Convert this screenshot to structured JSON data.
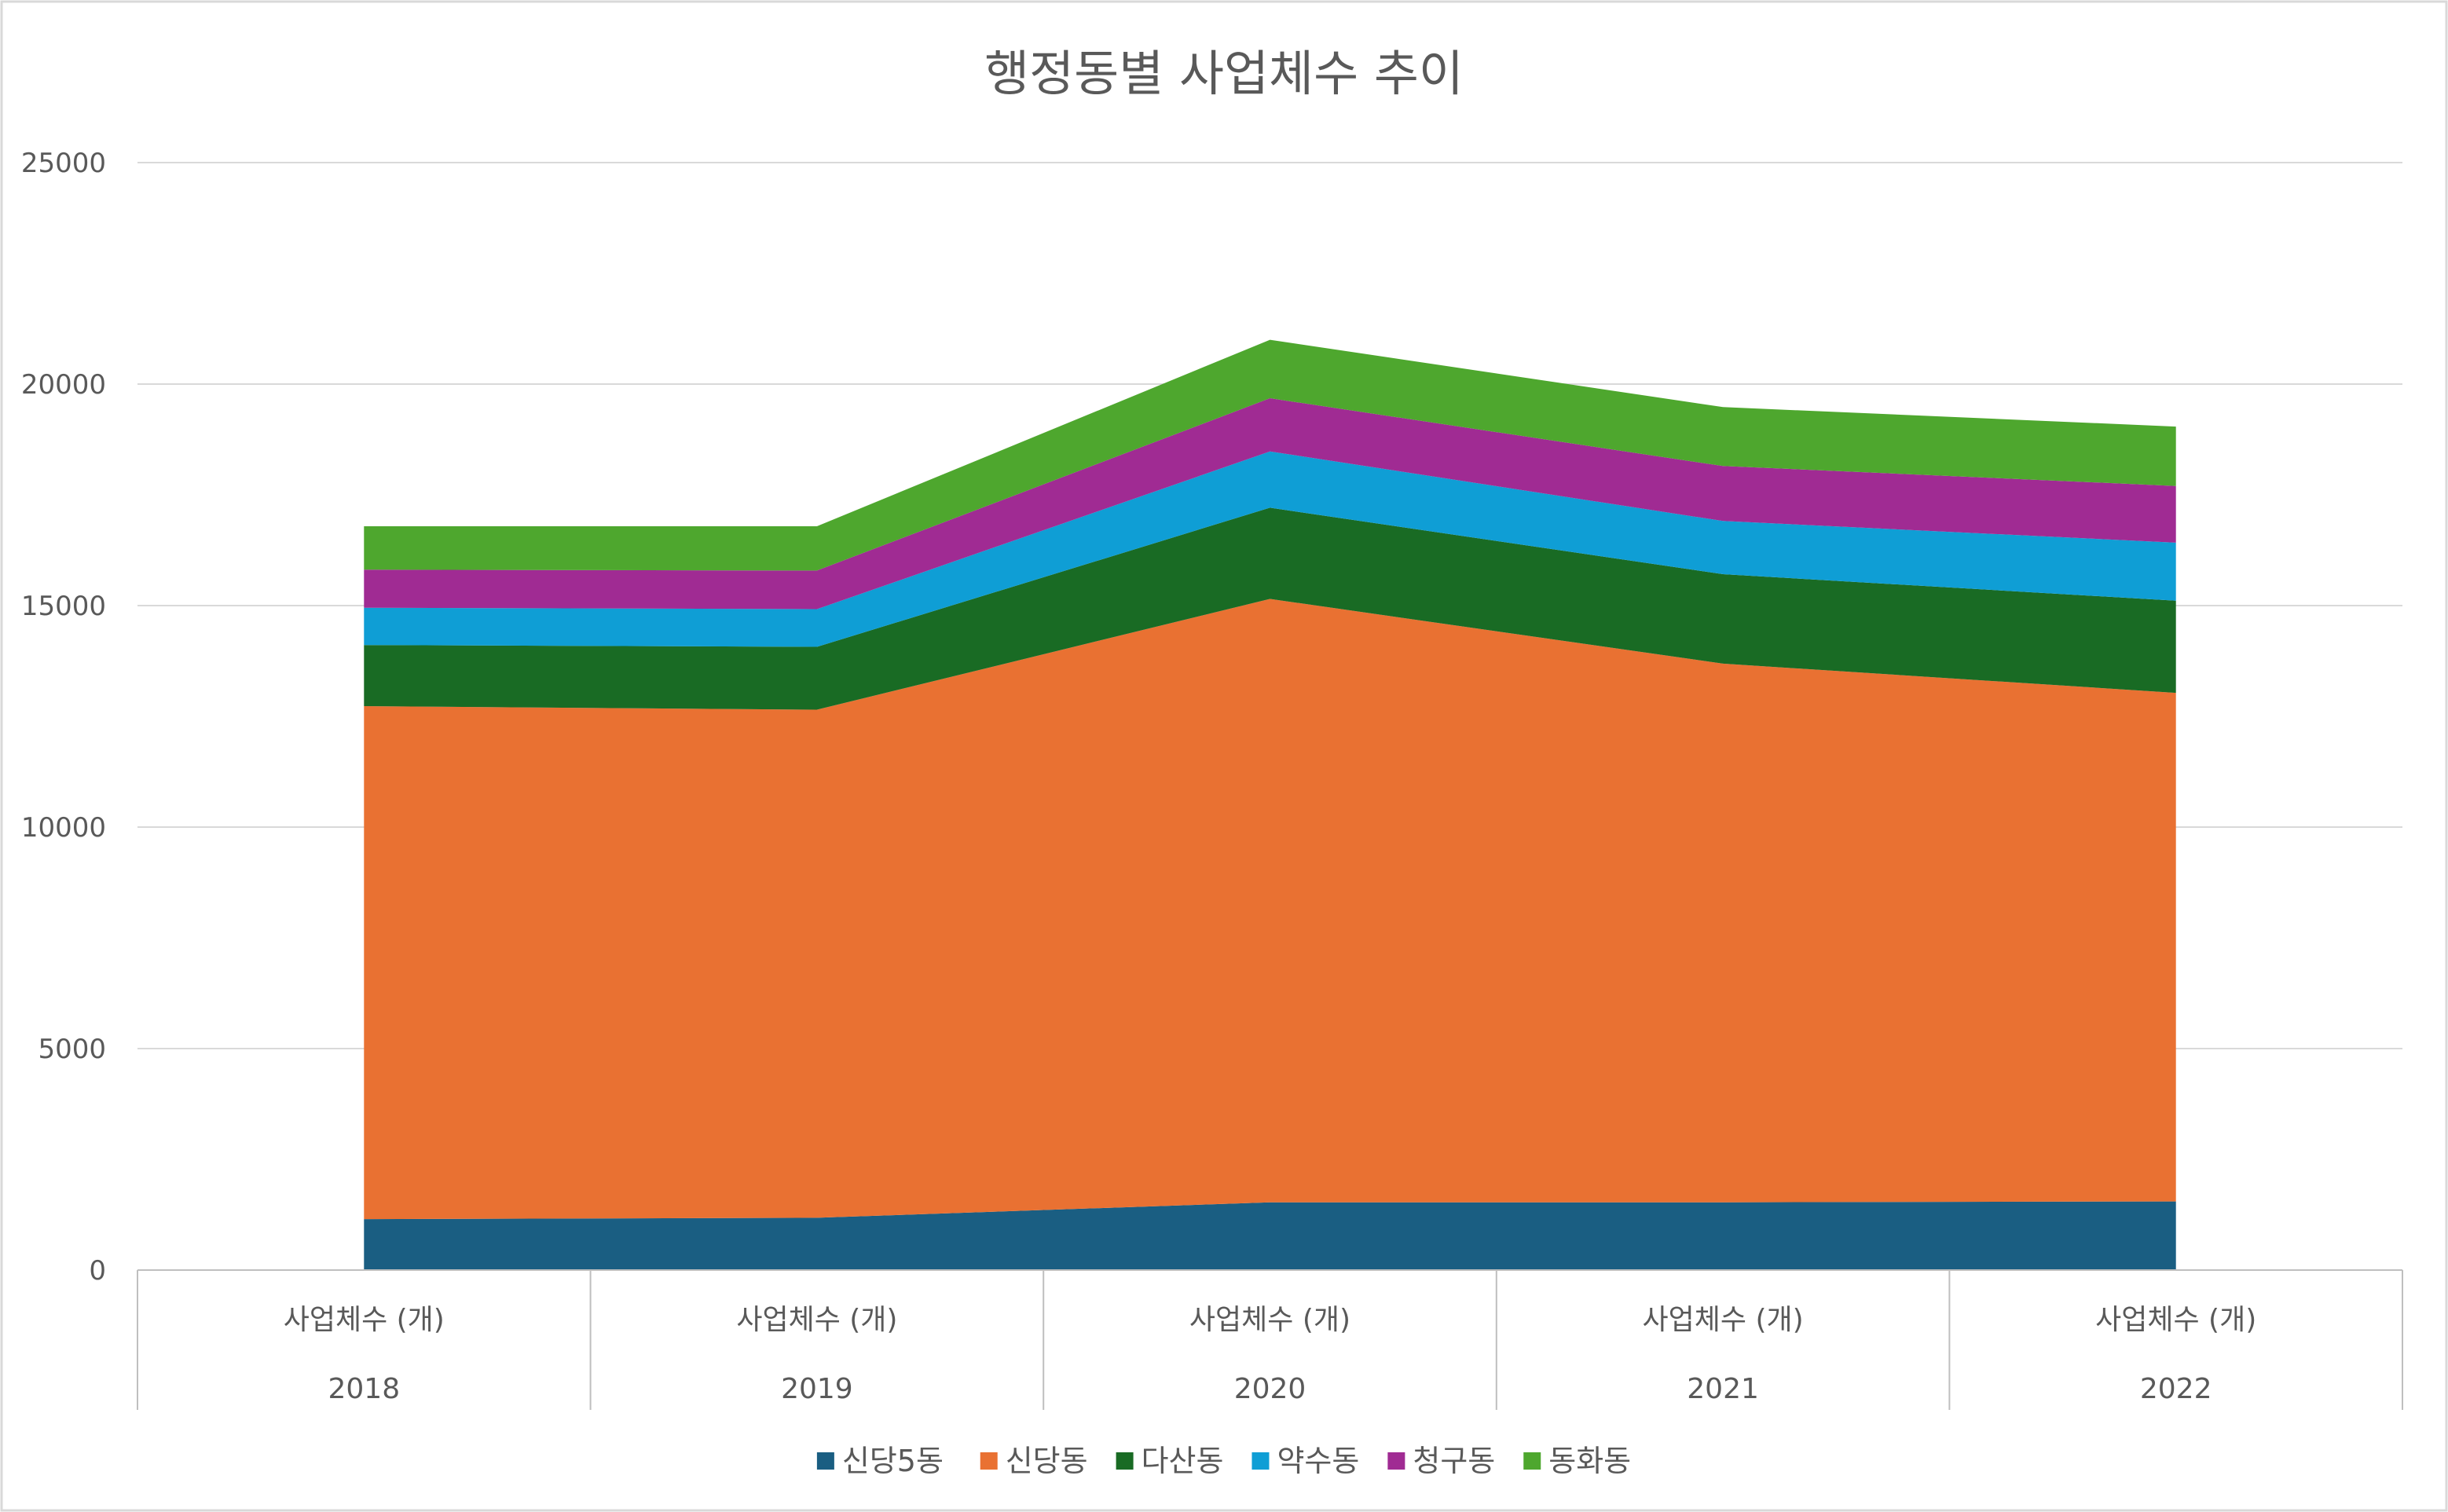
{
  "chart_data": {
    "type": "area",
    "stacked": true,
    "title": "행정동별 사업체수 추이",
    "x": [
      {
        "group": "2018",
        "label": "사업체수 (개)"
      },
      {
        "group": "2019",
        "label": "사업체수 (개)"
      },
      {
        "group": "2020",
        "label": "사업체수 (개)"
      },
      {
        "group": "2021",
        "label": "사업체수 (개)"
      },
      {
        "group": "2022",
        "label": "사업체수 (개)"
      }
    ],
    "series": [
      {
        "name": "신당5동",
        "color": "#1a5e82",
        "values": [
          1150,
          1180,
          1530,
          1530,
          1550
        ]
      },
      {
        "name": "신당동",
        "color": "#e97132",
        "values": [
          11580,
          11470,
          13620,
          12160,
          11480
        ]
      },
      {
        "name": "다산동",
        "color": "#196b24",
        "values": [
          1380,
          1420,
          2060,
          2020,
          2080
        ]
      },
      {
        "name": "약수동",
        "color": "#0f9ed5",
        "values": [
          840,
          850,
          1270,
          1200,
          1310
        ]
      },
      {
        "name": "청구동",
        "color": "#a02b93",
        "values": [
          860,
          870,
          1200,
          1240,
          1280
        ]
      },
      {
        "name": "동화동",
        "color": "#4ea72e",
        "values": [
          980,
          1000,
          1320,
          1330,
          1340
        ]
      }
    ],
    "ylim": [
      0,
      25000
    ],
    "yticks": [
      "0",
      "5000",
      "10000",
      "15000",
      "20000",
      "25000"
    ],
    "grid": true,
    "legend": "bottom"
  }
}
